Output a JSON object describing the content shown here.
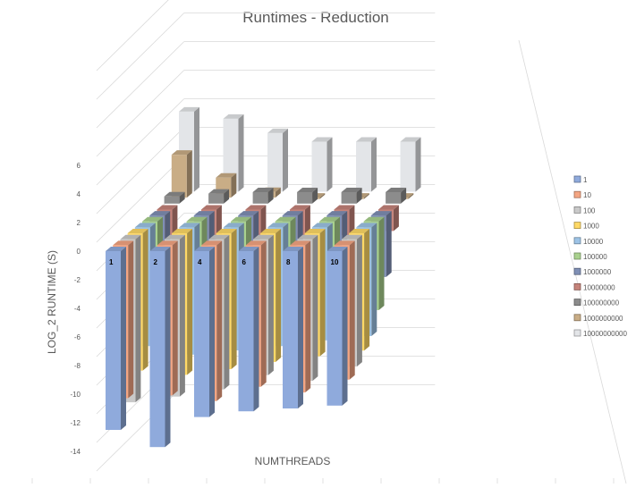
{
  "chart_data": {
    "type": "bar",
    "subtype": "3d-column",
    "title": "Runtimes - Reduction",
    "xlabel": "NUMTHREADS",
    "ylabel": "LOG_2 RUNTIME (S)",
    "ylim": [
      -14,
      6
    ],
    "yticks": [
      "6",
      "4",
      "2",
      "0",
      "-2",
      "-4",
      "-6",
      "-8",
      "-10",
      "-12",
      "-14"
    ],
    "categories": [
      "1",
      "2",
      "4",
      "6",
      "8",
      "10"
    ],
    "grid": true,
    "legend_position": "right",
    "series": [
      {
        "name": "1",
        "color": "#8faadc",
        "values": [
          -12.5,
          -13.7,
          -11.6,
          -11.2,
          -11.0,
          -10.8
        ]
      },
      {
        "name": "10",
        "color": "#f4a582",
        "values": [
          -10.7,
          -10.5,
          -10.9,
          -9.9,
          -10.3,
          -9.4
        ]
      },
      {
        "name": "100",
        "color": "#c9c9c9",
        "values": [
          -11.4,
          -11.0,
          -10.5,
          -9.5,
          -9.9,
          -8.9
        ]
      },
      {
        "name": "1000",
        "color": "#ffd966",
        "values": [
          -9.6,
          -9.9,
          -9.5,
          -9.0,
          -8.6,
          -8.2
        ]
      },
      {
        "name": "10000",
        "color": "#9dc3e6",
        "values": [
          -8.3,
          -8.9,
          -8.6,
          -8.3,
          -7.9,
          -7.6
        ]
      },
      {
        "name": "100000",
        "color": "#a9d18e",
        "values": [
          -7.0,
          -7.5,
          -7.0,
          -6.8,
          -6.4,
          -6.2
        ]
      },
      {
        "name": "1000000",
        "color": "#7f8fb5",
        "values": [
          -5.4,
          -5.8,
          -5.2,
          -4.9,
          -4.4,
          -4.3
        ]
      },
      {
        "name": "10000000",
        "color": "#c5837a",
        "values": [
          -2.0,
          -2.6,
          -2.2,
          -2.0,
          -1.8,
          -1.5
        ]
      },
      {
        "name": "100000000",
        "color": "#8c8c8c",
        "values": [
          0.5,
          0.7,
          0.8,
          0.8,
          0.8,
          0.8
        ]
      },
      {
        "name": "1000000000",
        "color": "#c9ad86",
        "values": [
          3.0,
          1.4,
          0.4,
          -0.1,
          -0.1,
          -0.1
        ]
      },
      {
        "name": "10000000000",
        "color": "#e3e5e8",
        "values": [
          5.6,
          5.1,
          4.1,
          3.5,
          3.5,
          3.5
        ]
      }
    ]
  }
}
